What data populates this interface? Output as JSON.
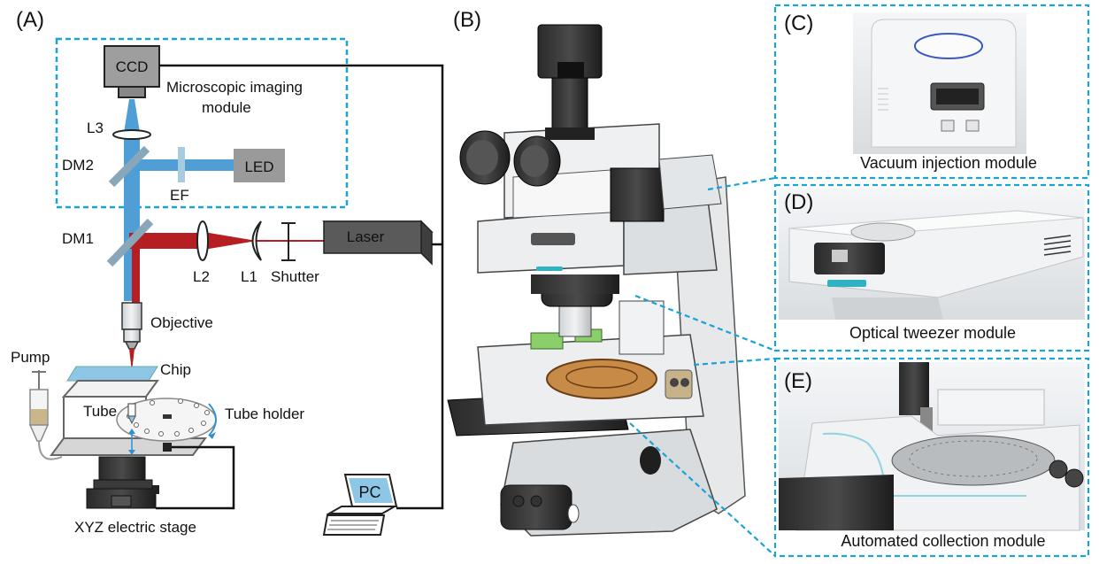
{
  "panels": {
    "a": "(A)",
    "b": "(B)",
    "c": "(C)",
    "d": "(D)",
    "e": "(E)"
  },
  "schematic": {
    "ccd": "CCD",
    "imaging_module_line1": "Microscopic imaging",
    "imaging_module_line2": "module",
    "l3": "L3",
    "dm2": "DM2",
    "led": "LED",
    "ef": "EF",
    "dm1": "DM1",
    "laser": "Laser",
    "l2": "L2",
    "l1": "L1",
    "shutter": "Shutter",
    "objective": "Objective",
    "pump": "Pump",
    "chip": "Chip",
    "tube": "Tube",
    "tube_holder": "Tube holder",
    "pc": "PC",
    "stage": "XYZ electric stage"
  },
  "modules": {
    "c": "Vacuum injection module",
    "d": "Optical tweezer module",
    "e": "Automated collection module"
  },
  "colors": {
    "dashed_box": "#1aa3d8",
    "beam_blue": "#4f9fd6",
    "beam_red": "#b51f24",
    "optic_gray": "#8aa7b9",
    "led_box": "#9a9a9a",
    "laser_box": "#5a5a5a",
    "chip_blue": "#8ec6e6"
  }
}
